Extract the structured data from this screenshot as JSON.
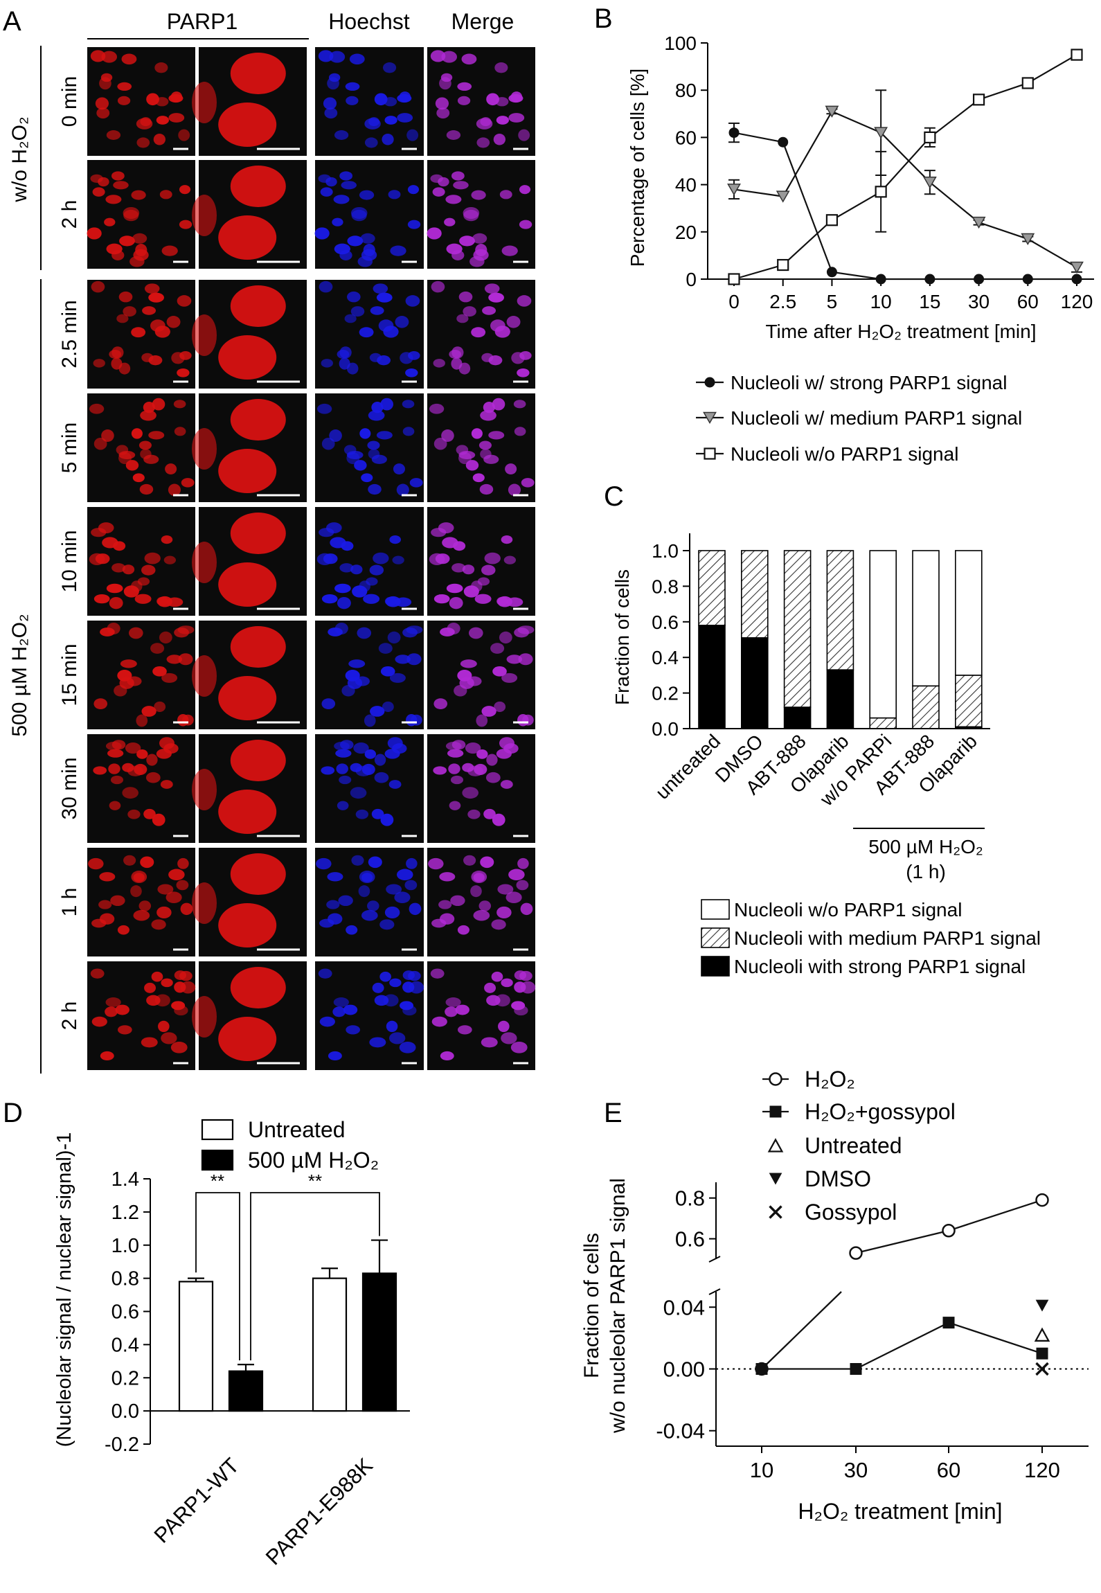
{
  "panel_letters": {
    "a": "A",
    "b": "B",
    "c": "C",
    "d": "D",
    "e": "E"
  },
  "panel_a": {
    "col_headers": [
      "PARP1",
      "Hoechst",
      "Merge"
    ],
    "group_labels": [
      "w/o H₂O₂",
      "500 µM H₂O₂"
    ],
    "row_labels": [
      "0 min",
      "2 h",
      "2.5 min",
      "5 min",
      "10 min",
      "15 min",
      "30 min",
      "1 h",
      "2 h"
    ],
    "channel_colors": {
      "parp1": "#d81212",
      "hoechst": "#1a1ae6",
      "merge": "#b22ad6"
    },
    "background": "#0b0b0b"
  },
  "chart_data": [
    {
      "panel": "B",
      "type": "line",
      "x": [
        "0",
        "2.5",
        "5",
        "10",
        "15",
        "30",
        "60",
        "120"
      ],
      "xlabel": "Time after H₂O₂ treatment [min]",
      "ylabel": "Percentage of cells [%]",
      "ylim": [
        0,
        100
      ],
      "yticks": [
        "0",
        "20",
        "40",
        "60",
        "80",
        "100"
      ],
      "legend_position": "below",
      "series": [
        {
          "name": "Nucleoli w/ strong PARP1 signal",
          "marker": "circle-filled",
          "values": [
            62,
            58,
            3,
            0,
            0,
            0,
            0,
            0
          ],
          "errors": [
            4,
            0,
            0,
            0,
            0,
            0,
            0,
            0
          ]
        },
        {
          "name": "Nucleoli w/ medium PARP1 signal",
          "marker": "triangle-down-gray",
          "values": [
            38,
            35,
            71,
            62,
            41,
            24,
            17,
            5
          ],
          "errors": [
            4,
            0,
            1,
            18,
            5,
            1,
            1,
            2
          ]
        },
        {
          "name": "Nucleoli w/o PARP1 signal",
          "marker": "square-open",
          "values": [
            0,
            6,
            25,
            37,
            60,
            76,
            83,
            95
          ],
          "errors": [
            0,
            0,
            1,
            17,
            4,
            1,
            1,
            1
          ]
        }
      ]
    },
    {
      "panel": "C",
      "type": "bar",
      "stacked": true,
      "categories": [
        "untreated",
        "DMSO",
        "ABT-888",
        "Olaparib",
        "w/o PARPi",
        "ABT-888",
        "Olaparib"
      ],
      "ylabel": "Fraction of cells",
      "ylim": [
        0,
        1
      ],
      "yticks": [
        "0.0",
        "0.2",
        "0.4",
        "0.6",
        "0.8",
        "1.0"
      ],
      "group_label": "500 µM H₂O₂",
      "group_sublabel": "(1 h)",
      "legend_position": "below",
      "series": [
        {
          "name": "Nucleoli with strong PARP1 signal",
          "fill": "solid",
          "values": [
            0.58,
            0.51,
            0.12,
            0.33,
            0.0,
            0.0,
            0.01
          ]
        },
        {
          "name": "Nucleoli with medium PARP1 signal",
          "fill": "hatched",
          "values": [
            0.42,
            0.49,
            0.88,
            0.67,
            0.06,
            0.24,
            0.29
          ]
        },
        {
          "name": "Nucleoli w/o PARP1 signal",
          "fill": "open",
          "values": [
            0.0,
            0.0,
            0.0,
            0.0,
            0.94,
            0.76,
            0.7
          ]
        }
      ],
      "legend_order": [
        "Nucleoli w/o PARP1 signal",
        "Nucleoli with medium PARP1 signal",
        "Nucleoli with strong PARP1 signal"
      ]
    },
    {
      "panel": "D",
      "type": "bar",
      "categories": [
        "PARP1-WT",
        "PARP1-E988K"
      ],
      "ylabel": "(Nucleolar signal / nuclear signal)-1",
      "ylim": [
        -0.2,
        1.4
      ],
      "yticks": [
        "-0.2",
        "0.0",
        "0.2",
        "0.4",
        "0.6",
        "0.8",
        "1.0",
        "1.2",
        "1.4"
      ],
      "legend_position": "top",
      "series": [
        {
          "name": "Untreated",
          "fill": "open",
          "values": [
            0.78,
            0.8
          ],
          "errors": [
            0.02,
            0.06
          ]
        },
        {
          "name": "500 µM H₂O₂",
          "fill": "solid",
          "values": [
            0.24,
            0.83
          ],
          "errors": [
            0.04,
            0.2
          ]
        }
      ],
      "significance": [
        "**",
        "**"
      ]
    },
    {
      "panel": "E",
      "type": "line",
      "x": [
        "10",
        "30",
        "60",
        "120"
      ],
      "xlabel": "H₂O₂ treatment [min]",
      "ylabel_line1": "Fraction of cells",
      "ylabel_line2": "w/o nucleolar PARP1 signal",
      "broken_y_axis": true,
      "ylim_lower": [
        -0.05,
        0.05
      ],
      "ylim_upper": [
        0.5,
        0.85
      ],
      "yticks_lower": [
        "-0.04",
        "0.00",
        "0.04"
      ],
      "yticks_upper": [
        "0.6",
        "0.8"
      ],
      "reference_line": 0,
      "legend_position": "top",
      "series": [
        {
          "name": "H₂O₂",
          "marker": "circle-open",
          "values": [
            0.0,
            0.53,
            0.64,
            0.79
          ]
        },
        {
          "name": "H₂O₂+gossypol",
          "marker": "square-filled",
          "values": [
            0.0,
            0.0,
            0.03,
            0.01
          ]
        },
        {
          "name": "Untreated",
          "marker": "triangle-up-open",
          "x": [
            "120"
          ],
          "values": [
            0.022
          ]
        },
        {
          "name": "DMSO",
          "marker": "triangle-down-filled",
          "x": [
            "120"
          ],
          "values": [
            0.041
          ]
        },
        {
          "name": "Gossypol",
          "marker": "x",
          "x": [
            "120"
          ],
          "values": [
            0.0
          ]
        }
      ]
    }
  ]
}
